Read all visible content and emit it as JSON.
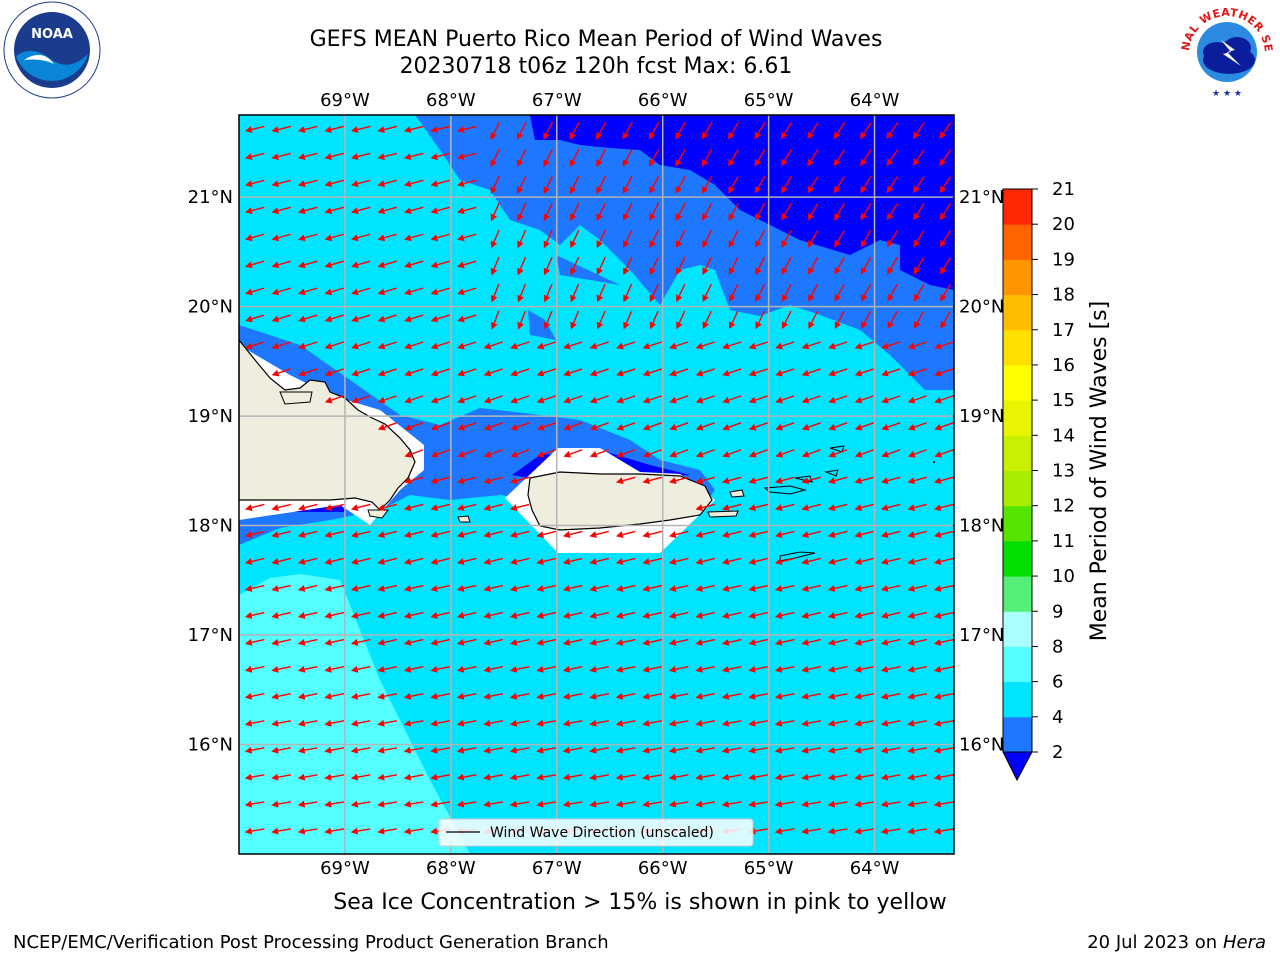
{
  "title": {
    "line1": "GEFS MEAN Puerto Rico Mean Period of Wind Waves",
    "line2": "20230718 t06z 120h fcst   Max: 6.61"
  },
  "map": {
    "lon_range": [
      -70,
      -63.25
    ],
    "lat_range": [
      15,
      21.75
    ],
    "lon_ticks": [
      "69°W",
      "68°W",
      "67°W",
      "66°W",
      "65°W",
      "64°W"
    ],
    "lat_ticks": [
      "21°N",
      "20°N",
      "19°N",
      "18°N",
      "17°N",
      "16°N"
    ],
    "grid": true,
    "legend": "Wind Wave Direction (unscaled)",
    "legend_position": "bottom-center"
  },
  "colorbar": {
    "label": "Mean Period of Wind Waves [s]",
    "ticks": [
      "2",
      "4",
      "6",
      "8",
      "9",
      "10",
      "11",
      "12",
      "13",
      "14",
      "15",
      "16",
      "17",
      "18",
      "19",
      "20",
      "21"
    ],
    "under_color": "#0000ff",
    "colors": [
      "#1e78ff",
      "#00e5ff",
      "#54ffff",
      "#aaffff",
      "#55ee77",
      "#00e000",
      "#55e400",
      "#a8ec00",
      "#c8f000",
      "#e8f400",
      "#ffff00",
      "#ffe000",
      "#ffbe00",
      "#ff9600",
      "#ff6400",
      "#ff2800",
      "#ff0000"
    ]
  },
  "colors": {
    "land": "#efedde",
    "arrow": "#ff0000",
    "period_2_4": "#1e78ff",
    "period_4_6": "#00e5ff",
    "period_6_8": "#54ffff",
    "period_lt_2": "#0000ff",
    "grid": "#b4b4b4"
  },
  "caption": "Sea Ice Concentration > 15% is shown in pink to yellow",
  "footer": {
    "left": "NCEP/EMC/Verification Post Processing Product Generation Branch",
    "date": "20 Jul 2023 on ",
    "machine": "Hera"
  },
  "logos": {
    "noaa": "NOAA",
    "nws": "NATIONAL WEATHER SERVICE"
  }
}
